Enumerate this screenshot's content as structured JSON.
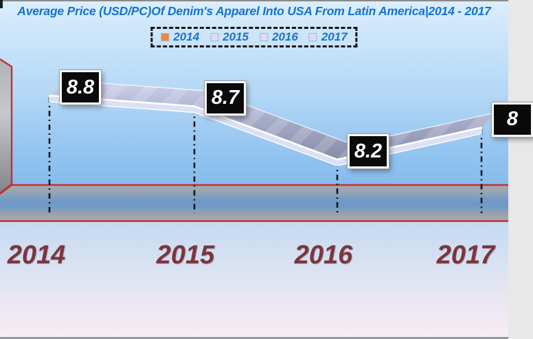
{
  "chart_data": {
    "type": "area",
    "subtype": "3d-ribbon-line",
    "title": "Average Price (USD/PC)Of Denim's Apparel Into USA From Latin America|2014 - 2017",
    "categories": [
      "2014",
      "2015",
      "2016",
      "2017"
    ],
    "values": [
      8.8,
      8.7,
      8.2,
      8.5
    ],
    "data_labels": [
      "8.8",
      "8.7",
      "8.2",
      "8"
    ],
    "data_label_note": "2017 data label is truncated by the right edge of the image; only '8' is visible",
    "xlabel": "",
    "ylabel": "",
    "value_axis_visible": false,
    "gridlines": false,
    "legend_position": "top"
  },
  "legend": {
    "items": [
      {
        "label": "2014",
        "color": "#F0883B"
      },
      {
        "label": "2015",
        "color": "#D9DEF2"
      },
      {
        "label": "2016",
        "color": "#D9DEF2"
      },
      {
        "label": "2017",
        "color": "#D9DEF2"
      }
    ]
  },
  "colors": {
    "title_text": "#1273D2",
    "legend_text": "#1B73CF",
    "category_label_text": "#7C353C",
    "axis_line_red": "#C23030",
    "ribbon_light": "#CDD1EC",
    "ribbon_mid": "#A9AECB",
    "ribbon_dark": "#868CA9",
    "ribbon_edge": "#FFFFFF",
    "drop_line": "#141414",
    "data_label_bg": "#0A0A0A",
    "data_label_text": "#FFFFFF"
  }
}
